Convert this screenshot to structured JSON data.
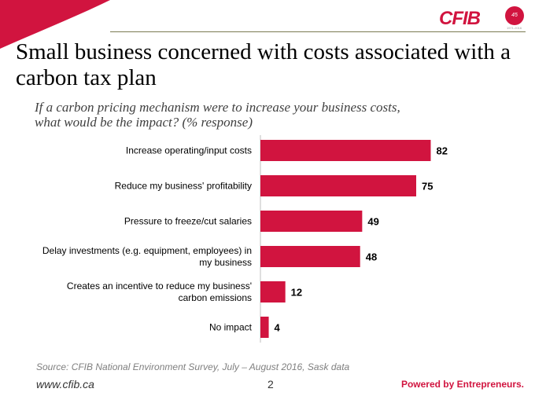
{
  "brand": {
    "logo_text": "CFIB",
    "badge_text": "45 years",
    "badge_sub": "1971-2016",
    "accent_color": "#d1143f",
    "tagline": "Powered by Entrepreneurs."
  },
  "slide": {
    "title": "Small business concerned with costs associated with a carbon tax plan",
    "question": "If a carbon pricing mechanism were to increase your business costs,\nwhat would be the impact? (% response)",
    "source": "Source: CFIB National Environment Survey, July – August 2016, Sask data",
    "url": "www.cfib.ca",
    "page_number": "2"
  },
  "chart_data": {
    "type": "bar",
    "orientation": "horizontal",
    "categories": [
      [
        "Increase operating/input costs"
      ],
      [
        "Reduce my business' profitability"
      ],
      [
        "Pressure to freeze/cut salaries"
      ],
      [
        "Delay investments (e.g. equipment, employees) in",
        "my business"
      ],
      [
        "Creates an incentive to reduce my business'",
        "carbon emissions"
      ],
      [
        "No impact"
      ]
    ],
    "values": [
      82,
      75,
      49,
      48,
      12,
      4
    ],
    "xlim": [
      0,
      100
    ],
    "bar_color": "#d1143f",
    "grid": false,
    "legend": "none"
  }
}
